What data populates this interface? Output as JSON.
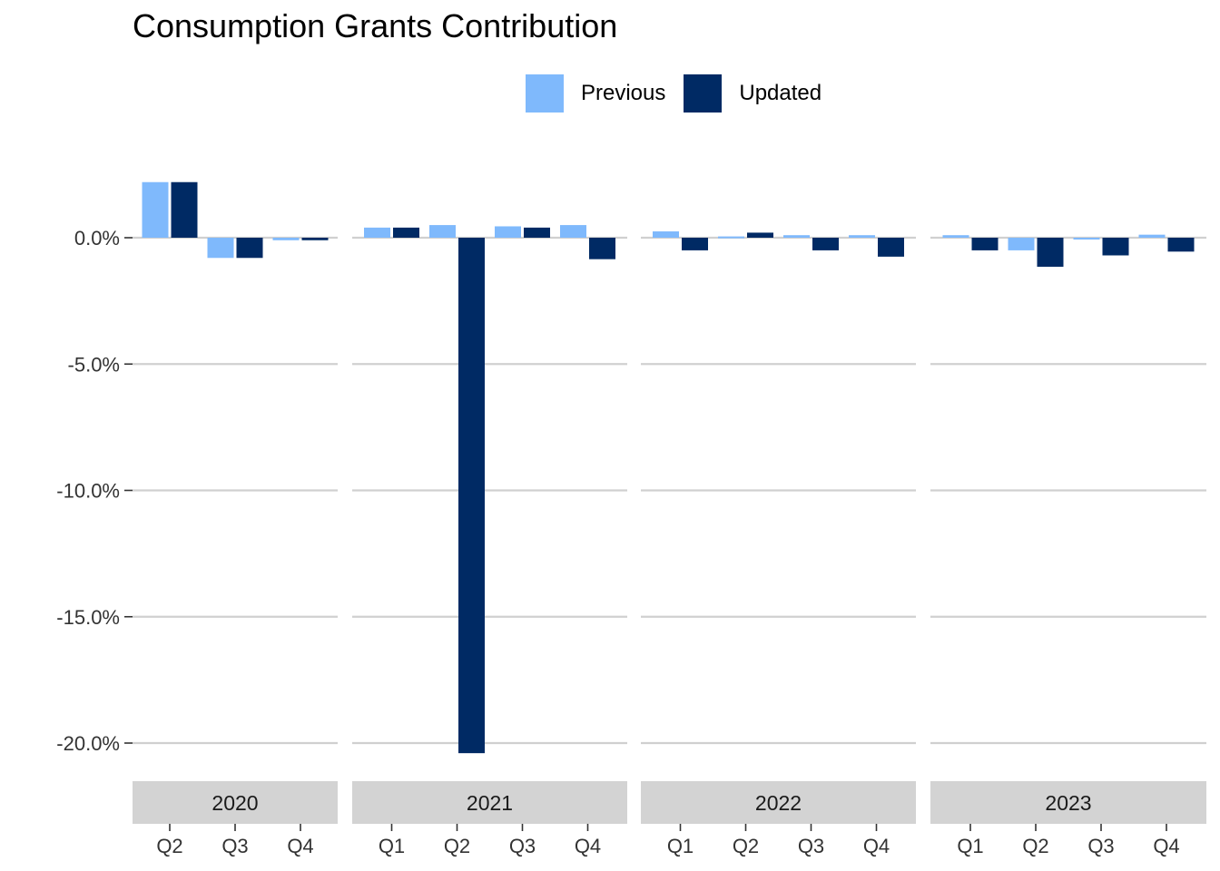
{
  "chart_data": {
    "type": "bar",
    "title": "Consumption Grants Contribution",
    "xlabel": "",
    "ylabel": "",
    "ylim": [
      -21.5,
      3.0
    ],
    "y_ticks": [
      0.0,
      -5.0,
      -10.0,
      -15.0,
      -20.0
    ],
    "y_tick_labels": [
      "0.0%",
      "-5.0%",
      "-10.0%",
      "-15.0%",
      "-20.0%"
    ],
    "grid": true,
    "legend_position": "top",
    "colors": {
      "Previous": "#7fb9fc",
      "Updated": "#002a64"
    },
    "facets": [
      {
        "label": "2020",
        "categories": [
          "Q2",
          "Q3",
          "Q4"
        ],
        "series": [
          {
            "name": "Previous",
            "values": [
              2.2,
              -0.8,
              -0.1
            ]
          },
          {
            "name": "Updated",
            "values": [
              2.2,
              -0.8,
              -0.1
            ]
          }
        ]
      },
      {
        "label": "2021",
        "categories": [
          "Q1",
          "Q2",
          "Q3",
          "Q4"
        ],
        "series": [
          {
            "name": "Previous",
            "values": [
              0.4,
              0.5,
              0.45,
              0.5
            ]
          },
          {
            "name": "Updated",
            "values": [
              0.4,
              -20.4,
              0.4,
              -0.85
            ]
          }
        ]
      },
      {
        "label": "2022",
        "categories": [
          "Q1",
          "Q2",
          "Q3",
          "Q4"
        ],
        "series": [
          {
            "name": "Previous",
            "values": [
              0.25,
              0.05,
              0.1,
              0.1
            ]
          },
          {
            "name": "Updated",
            "values": [
              -0.5,
              0.2,
              -0.5,
              -0.75
            ]
          }
        ]
      },
      {
        "label": "2023",
        "categories": [
          "Q1",
          "Q2",
          "Q3",
          "Q4"
        ],
        "series": [
          {
            "name": "Previous",
            "values": [
              0.1,
              -0.5,
              -0.05,
              0.12
            ]
          },
          {
            "name": "Updated",
            "values": [
              -0.5,
              -1.15,
              -0.7,
              -0.55
            ]
          }
        ]
      }
    ]
  }
}
